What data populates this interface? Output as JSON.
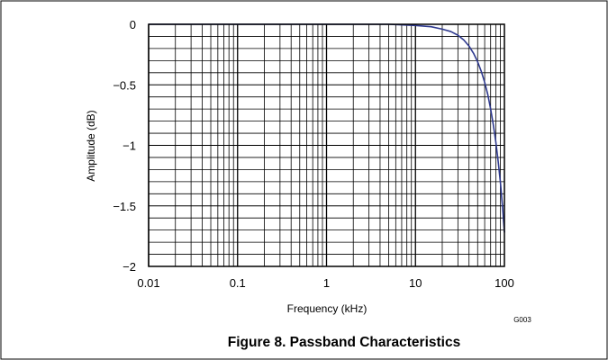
{
  "figure": {
    "caption": "Figure 8. Passband Characteristics",
    "code": "G003"
  },
  "chart_data": {
    "type": "line",
    "title": "",
    "xlabel": "Frequency (kHz)",
    "ylabel": "Amplitude (dB)",
    "xscale": "log",
    "xlim": [
      0.01,
      100
    ],
    "ylim": [
      -2,
      0
    ],
    "x_ticks": [
      {
        "value": 0.01,
        "label": "0.01"
      },
      {
        "value": 0.1,
        "label": "0.1"
      },
      {
        "value": 1,
        "label": "1"
      },
      {
        "value": 10,
        "label": "10"
      },
      {
        "value": 100,
        "label": "100"
      }
    ],
    "y_ticks": [
      {
        "value": 0,
        "label": "0"
      },
      {
        "value": -0.5,
        "label": "−0.5"
      },
      {
        "value": -1,
        "label": "−1"
      },
      {
        "value": -1.5,
        "label": "−1.5"
      },
      {
        "value": -2,
        "label": "−2"
      }
    ],
    "grid": true,
    "series": [
      {
        "color": "#2f3a8f",
        "x": [
          0.01,
          0.1,
          1,
          5,
          10,
          15,
          20,
          25,
          30,
          35,
          40,
          45,
          50,
          55,
          60,
          65,
          70,
          75,
          80,
          85,
          90,
          95,
          100
        ],
        "y": [
          0,
          0,
          0,
          0,
          -0.01,
          -0.02,
          -0.04,
          -0.06,
          -0.09,
          -0.13,
          -0.18,
          -0.24,
          -0.31,
          -0.39,
          -0.48,
          -0.58,
          -0.7,
          -0.83,
          -0.97,
          -1.13,
          -1.3,
          -1.5,
          -1.72
        ]
      }
    ]
  }
}
